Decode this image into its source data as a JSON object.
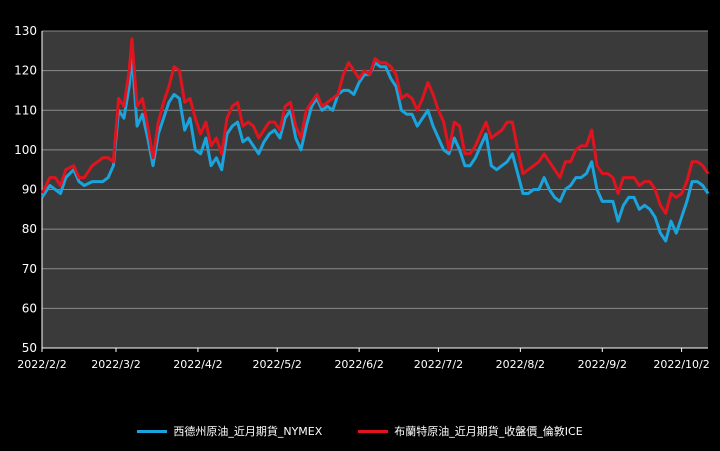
{
  "chart_data": {
    "type": "line",
    "colors": {
      "background": "#000000",
      "plot_area": "#3a3a3a",
      "grid": "#8a8a8a",
      "axis_text": "#ffffff"
    },
    "y_axis": {
      "min": 50,
      "max": 130,
      "ticks": [
        "50",
        "60",
        "70",
        "80",
        "90",
        "100",
        "110",
        "120",
        "130"
      ]
    },
    "x_axis": {
      "start": "2022-02-02",
      "end": "2022-10-12",
      "ticks": [
        {
          "date": "2022-02-02",
          "label": "2022/2/2"
        },
        {
          "date": "2022-03-02",
          "label": "2022/3/2"
        },
        {
          "date": "2022-04-02",
          "label": "2022/4/2"
        },
        {
          "date": "2022-05-02",
          "label": "2022/5/2"
        },
        {
          "date": "2022-06-02",
          "label": "2022/6/2"
        },
        {
          "date": "2022-07-02",
          "label": "2022/7/2"
        },
        {
          "date": "2022-08-02",
          "label": "2022/8/2"
        },
        {
          "date": "2022-09-02",
          "label": "2022/9/2"
        },
        {
          "date": "2022-10-02",
          "label": "2022/10/2"
        }
      ]
    },
    "grid": true,
    "legend_position": "bottom",
    "series": [
      {
        "name": "西德州原油_近月期貨_NYMEX",
        "color": "#1aa3dc",
        "points": [
          [
            "2022-02-02",
            88
          ],
          [
            "2022-02-05",
            91
          ],
          [
            "2022-02-07",
            90
          ],
          [
            "2022-02-09",
            89
          ],
          [
            "2022-02-11",
            93
          ],
          [
            "2022-02-14",
            95
          ],
          [
            "2022-02-16",
            92
          ],
          [
            "2022-02-18",
            91
          ],
          [
            "2022-02-21",
            92
          ],
          [
            "2022-02-23",
            92
          ],
          [
            "2022-02-25",
            92
          ],
          [
            "2022-02-27",
            93
          ],
          [
            "2022-03-01",
            96
          ],
          [
            "2022-03-03",
            110
          ],
          [
            "2022-03-05",
            108
          ],
          [
            "2022-03-07",
            116
          ],
          [
            "2022-03-08",
            124
          ],
          [
            "2022-03-10",
            106
          ],
          [
            "2022-03-12",
            109
          ],
          [
            "2022-03-14",
            103
          ],
          [
            "2022-03-16",
            96
          ],
          [
            "2022-03-18",
            104
          ],
          [
            "2022-03-20",
            108
          ],
          [
            "2022-03-22",
            112
          ],
          [
            "2022-03-24",
            114
          ],
          [
            "2022-03-26",
            113
          ],
          [
            "2022-03-28",
            105
          ],
          [
            "2022-03-30",
            108
          ],
          [
            "2022-04-01",
            100
          ],
          [
            "2022-04-03",
            99
          ],
          [
            "2022-04-05",
            103
          ],
          [
            "2022-04-07",
            96
          ],
          [
            "2022-04-09",
            98
          ],
          [
            "2022-04-11",
            95
          ],
          [
            "2022-04-13",
            104
          ],
          [
            "2022-04-15",
            106
          ],
          [
            "2022-04-17",
            107
          ],
          [
            "2022-04-19",
            102
          ],
          [
            "2022-04-21",
            103
          ],
          [
            "2022-04-23",
            101
          ],
          [
            "2022-04-25",
            99
          ],
          [
            "2022-04-27",
            102
          ],
          [
            "2022-04-29",
            104
          ],
          [
            "2022-05-01",
            105
          ],
          [
            "2022-05-03",
            103
          ],
          [
            "2022-05-05",
            108
          ],
          [
            "2022-05-07",
            110
          ],
          [
            "2022-05-09",
            103
          ],
          [
            "2022-05-11",
            100
          ],
          [
            "2022-05-13",
            106
          ],
          [
            "2022-05-15",
            111
          ],
          [
            "2022-05-17",
            113
          ],
          [
            "2022-05-19",
            110
          ],
          [
            "2022-05-21",
            111
          ],
          [
            "2022-05-23",
            110
          ],
          [
            "2022-05-25",
            114
          ],
          [
            "2022-05-27",
            115
          ],
          [
            "2022-05-29",
            115
          ],
          [
            "2022-05-31",
            114
          ],
          [
            "2022-06-02",
            117
          ],
          [
            "2022-06-04",
            119
          ],
          [
            "2022-06-06",
            119
          ],
          [
            "2022-06-08",
            122
          ],
          [
            "2022-06-10",
            121
          ],
          [
            "2022-06-12",
            121
          ],
          [
            "2022-06-14",
            118
          ],
          [
            "2022-06-16",
            116
          ],
          [
            "2022-06-18",
            110
          ],
          [
            "2022-06-20",
            109
          ],
          [
            "2022-06-22",
            109
          ],
          [
            "2022-06-24",
            106
          ],
          [
            "2022-06-26",
            108
          ],
          [
            "2022-06-28",
            110
          ],
          [
            "2022-06-30",
            106
          ],
          [
            "2022-07-02",
            103
          ],
          [
            "2022-07-04",
            100
          ],
          [
            "2022-07-06",
            99
          ],
          [
            "2022-07-08",
            103
          ],
          [
            "2022-07-10",
            100
          ],
          [
            "2022-07-12",
            96
          ],
          [
            "2022-07-14",
            96
          ],
          [
            "2022-07-16",
            98
          ],
          [
            "2022-07-18",
            101
          ],
          [
            "2022-07-20",
            104
          ],
          [
            "2022-07-22",
            96
          ],
          [
            "2022-07-24",
            95
          ],
          [
            "2022-07-26",
            96
          ],
          [
            "2022-07-28",
            97
          ],
          [
            "2022-07-30",
            99
          ],
          [
            "2022-08-01",
            94
          ],
          [
            "2022-08-03",
            89
          ],
          [
            "2022-08-05",
            89
          ],
          [
            "2022-08-07",
            90
          ],
          [
            "2022-08-09",
            90
          ],
          [
            "2022-08-11",
            93
          ],
          [
            "2022-08-13",
            90
          ],
          [
            "2022-08-15",
            88
          ],
          [
            "2022-08-17",
            87
          ],
          [
            "2022-08-19",
            90
          ],
          [
            "2022-08-21",
            91
          ],
          [
            "2022-08-23",
            93
          ],
          [
            "2022-08-25",
            93
          ],
          [
            "2022-08-27",
            94
          ],
          [
            "2022-08-29",
            97
          ],
          [
            "2022-08-31",
            90
          ],
          [
            "2022-09-02",
            87
          ],
          [
            "2022-09-04",
            87
          ],
          [
            "2022-09-06",
            87
          ],
          [
            "2022-09-08",
            82
          ],
          [
            "2022-09-10",
            86
          ],
          [
            "2022-09-12",
            88
          ],
          [
            "2022-09-14",
            88
          ],
          [
            "2022-09-16",
            85
          ],
          [
            "2022-09-18",
            86
          ],
          [
            "2022-09-20",
            85
          ],
          [
            "2022-09-22",
            83
          ],
          [
            "2022-09-24",
            79
          ],
          [
            "2022-09-26",
            77
          ],
          [
            "2022-09-28",
            82
          ],
          [
            "2022-09-30",
            79
          ],
          [
            "2022-10-02",
            83
          ],
          [
            "2022-10-04",
            87
          ],
          [
            "2022-10-06",
            92
          ],
          [
            "2022-10-08",
            92
          ],
          [
            "2022-10-10",
            91
          ],
          [
            "2022-10-12",
            89
          ]
        ]
      },
      {
        "name": "布蘭特原油_近月期貨_收盤價_倫敦ICE",
        "color": "#e0141e",
        "points": [
          [
            "2022-02-02",
            89
          ],
          [
            "2022-02-05",
            93
          ],
          [
            "2022-02-07",
            93
          ],
          [
            "2022-02-09",
            91
          ],
          [
            "2022-02-11",
            95
          ],
          [
            "2022-02-14",
            96
          ],
          [
            "2022-02-16",
            93
          ],
          [
            "2022-02-18",
            93
          ],
          [
            "2022-02-21",
            96
          ],
          [
            "2022-02-23",
            97
          ],
          [
            "2022-02-25",
            98
          ],
          [
            "2022-02-27",
            98
          ],
          [
            "2022-03-01",
            97
          ],
          [
            "2022-03-03",
            113
          ],
          [
            "2022-03-05",
            111
          ],
          [
            "2022-03-07",
            120
          ],
          [
            "2022-03-08",
            128
          ],
          [
            "2022-03-10",
            111
          ],
          [
            "2022-03-12",
            113
          ],
          [
            "2022-03-14",
            106
          ],
          [
            "2022-03-16",
            98
          ],
          [
            "2022-03-18",
            107
          ],
          [
            "2022-03-20",
            112
          ],
          [
            "2022-03-22",
            116
          ],
          [
            "2022-03-24",
            121
          ],
          [
            "2022-03-26",
            120
          ],
          [
            "2022-03-28",
            112
          ],
          [
            "2022-03-30",
            113
          ],
          [
            "2022-04-01",
            108
          ],
          [
            "2022-04-03",
            104
          ],
          [
            "2022-04-05",
            107
          ],
          [
            "2022-04-07",
            101
          ],
          [
            "2022-04-09",
            103
          ],
          [
            "2022-04-11",
            99
          ],
          [
            "2022-04-13",
            108
          ],
          [
            "2022-04-15",
            111
          ],
          [
            "2022-04-17",
            112
          ],
          [
            "2022-04-19",
            106
          ],
          [
            "2022-04-21",
            107
          ],
          [
            "2022-04-23",
            106
          ],
          [
            "2022-04-25",
            103
          ],
          [
            "2022-04-27",
            105
          ],
          [
            "2022-04-29",
            107
          ],
          [
            "2022-05-01",
            107
          ],
          [
            "2022-05-03",
            105
          ],
          [
            "2022-05-05",
            111
          ],
          [
            "2022-05-07",
            112
          ],
          [
            "2022-05-09",
            106
          ],
          [
            "2022-05-11",
            103
          ],
          [
            "2022-05-13",
            110
          ],
          [
            "2022-05-15",
            112
          ],
          [
            "2022-05-17",
            114
          ],
          [
            "2022-05-19",
            111
          ],
          [
            "2022-05-21",
            112
          ],
          [
            "2022-05-23",
            113
          ],
          [
            "2022-05-25",
            114
          ],
          [
            "2022-05-27",
            119
          ],
          [
            "2022-05-29",
            122
          ],
          [
            "2022-05-31",
            120
          ],
          [
            "2022-06-02",
            118
          ],
          [
            "2022-06-04",
            120
          ],
          [
            "2022-06-06",
            119
          ],
          [
            "2022-06-08",
            123
          ],
          [
            "2022-06-10",
            122
          ],
          [
            "2022-06-12",
            122
          ],
          [
            "2022-06-14",
            121
          ],
          [
            "2022-06-16",
            119
          ],
          [
            "2022-06-18",
            113
          ],
          [
            "2022-06-20",
            114
          ],
          [
            "2022-06-22",
            113
          ],
          [
            "2022-06-24",
            110
          ],
          [
            "2022-06-26",
            113
          ],
          [
            "2022-06-28",
            117
          ],
          [
            "2022-06-30",
            114
          ],
          [
            "2022-07-02",
            110
          ],
          [
            "2022-07-04",
            107
          ],
          [
            "2022-07-06",
            100
          ],
          [
            "2022-07-08",
            107
          ],
          [
            "2022-07-10",
            106
          ],
          [
            "2022-07-12",
            99
          ],
          [
            "2022-07-14",
            99
          ],
          [
            "2022-07-16",
            101
          ],
          [
            "2022-07-18",
            104
          ],
          [
            "2022-07-20",
            107
          ],
          [
            "2022-07-22",
            103
          ],
          [
            "2022-07-24",
            104
          ],
          [
            "2022-07-26",
            105
          ],
          [
            "2022-07-28",
            107
          ],
          [
            "2022-07-30",
            107
          ],
          [
            "2022-08-01",
            100
          ],
          [
            "2022-08-03",
            94
          ],
          [
            "2022-08-05",
            95
          ],
          [
            "2022-08-07",
            96
          ],
          [
            "2022-08-09",
            97
          ],
          [
            "2022-08-11",
            99
          ],
          [
            "2022-08-13",
            97
          ],
          [
            "2022-08-15",
            95
          ],
          [
            "2022-08-17",
            93
          ],
          [
            "2022-08-19",
            97
          ],
          [
            "2022-08-21",
            97
          ],
          [
            "2022-08-23",
            100
          ],
          [
            "2022-08-25",
            101
          ],
          [
            "2022-08-27",
            101
          ],
          [
            "2022-08-29",
            105
          ],
          [
            "2022-08-31",
            96
          ],
          [
            "2022-09-02",
            94
          ],
          [
            "2022-09-04",
            94
          ],
          [
            "2022-09-06",
            93
          ],
          [
            "2022-09-08",
            89
          ],
          [
            "2022-09-10",
            93
          ],
          [
            "2022-09-12",
            93
          ],
          [
            "2022-09-14",
            93
          ],
          [
            "2022-09-16",
            91
          ],
          [
            "2022-09-18",
            92
          ],
          [
            "2022-09-20",
            92
          ],
          [
            "2022-09-22",
            90
          ],
          [
            "2022-09-24",
            86
          ],
          [
            "2022-09-26",
            84
          ],
          [
            "2022-09-28",
            89
          ],
          [
            "2022-09-30",
            88
          ],
          [
            "2022-10-02",
            89
          ],
          [
            "2022-10-04",
            92
          ],
          [
            "2022-10-06",
            97
          ],
          [
            "2022-10-08",
            97
          ],
          [
            "2022-10-10",
            96
          ],
          [
            "2022-10-12",
            94
          ]
        ]
      }
    ]
  }
}
